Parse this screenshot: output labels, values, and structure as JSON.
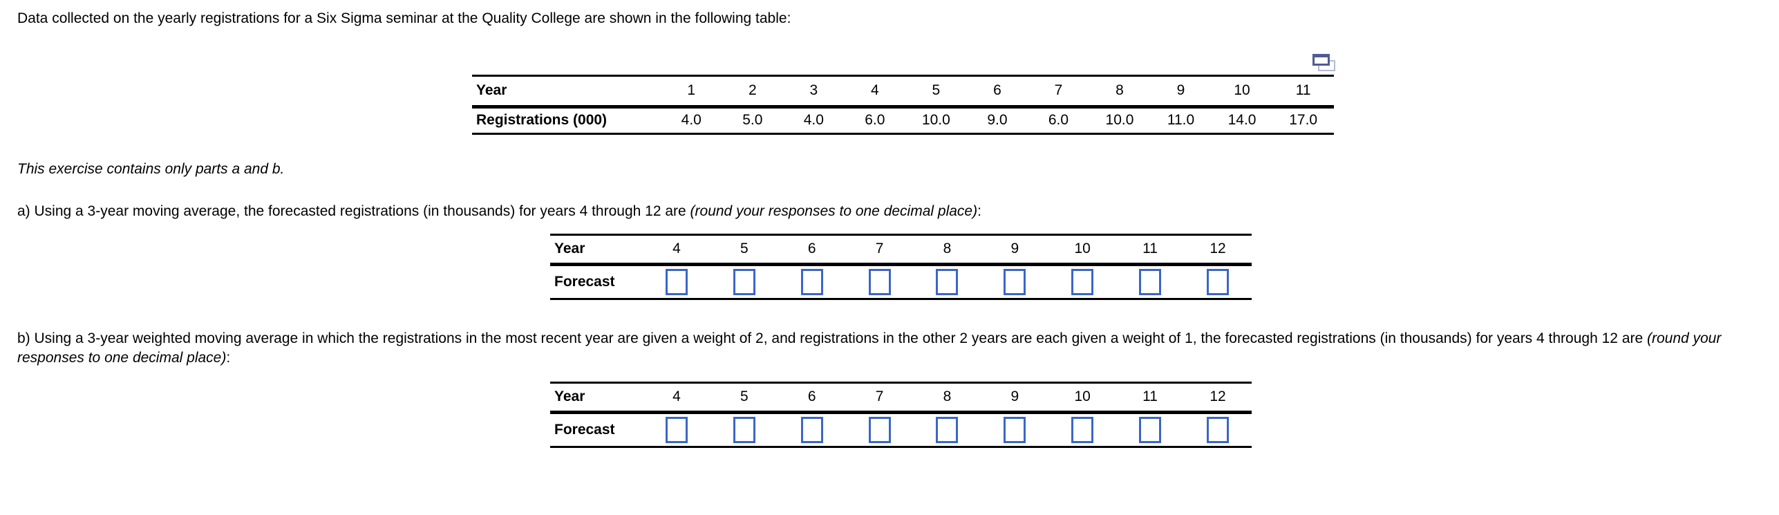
{
  "page": {
    "intro": "Data collected on the yearly registrations for a Six Sigma seminar at the Quality College are shown in the following table:",
    "exercise_note": "This exercise contains only parts a and b.",
    "part_a": {
      "text": "a) Using a 3-year moving average, the forecasted registrations (in thousands) for years 4 through 12 are ",
      "italic": "(round your responses to one decimal place)",
      "suffix": ":"
    },
    "part_b": {
      "text": "b) Using a 3-year weighted moving average in which the registrations in the most recent year are given a weight of 2, and registrations in the other 2 years are each given a weight of 1, the forecasted registrations (in thousands) for years 4 through 12 are ",
      "italic": "(round your responses to one decimal place)",
      "suffix": ":"
    }
  },
  "data_table": {
    "row1_label": "Year",
    "row2_label": "Registrations (000)",
    "years": [
      "1",
      "2",
      "3",
      "4",
      "5",
      "6",
      "7",
      "8",
      "9",
      "10",
      "11"
    ],
    "registrations": [
      "4.0",
      "5.0",
      "4.0",
      "6.0",
      "10.0",
      "9.0",
      "6.0",
      "10.0",
      "11.0",
      "14.0",
      "17.0"
    ]
  },
  "forecast_table_a": {
    "row1_label": "Year",
    "row2_label": "Forecast",
    "years": [
      "4",
      "5",
      "6",
      "7",
      "8",
      "9",
      "10",
      "11",
      "12"
    ],
    "inputs": [
      "",
      "",
      "",
      "",
      "",
      "",
      "",
      "",
      ""
    ]
  },
  "forecast_table_b": {
    "row1_label": "Year",
    "row2_label": "Forecast",
    "years": [
      "4",
      "5",
      "6",
      "7",
      "8",
      "9",
      "10",
      "11",
      "12"
    ],
    "inputs": [
      "",
      "",
      "",
      "",
      "",
      "",
      "",
      "",
      ""
    ]
  },
  "icons": {
    "popup_icon": "open-table-in-popup-window"
  },
  "colors": {
    "input_border": "#3a66c6",
    "icon_front_border": "#4f5b93",
    "icon_back_border": "#b3bad8",
    "text": "#000000",
    "rule": "#000000"
  }
}
